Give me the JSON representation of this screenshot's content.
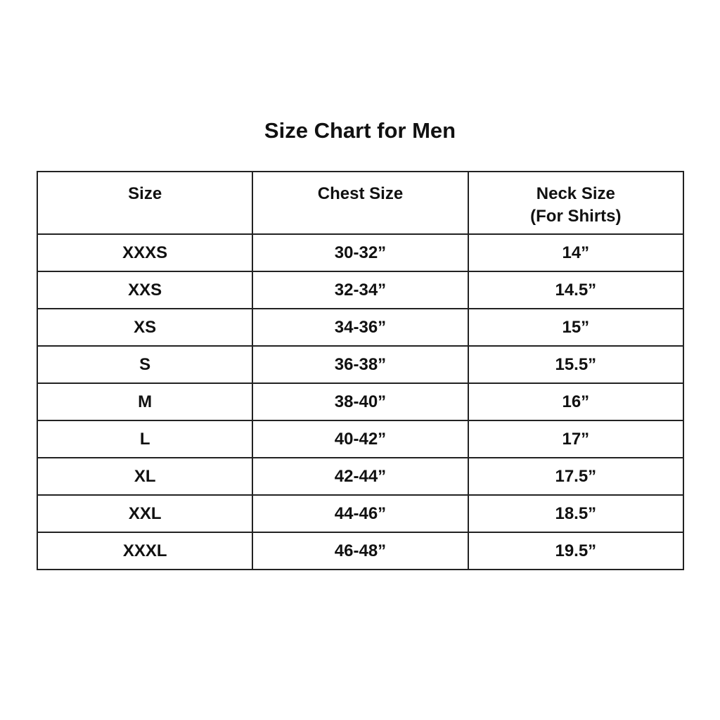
{
  "title": "Size Chart for Men",
  "headers": {
    "size": "Size",
    "chest": "Chest Size",
    "neck": "Neck Size",
    "neck_sub": "(For Shirts)"
  },
  "rows": [
    {
      "size": "XXXS",
      "chest": "30-32”",
      "neck": "14”"
    },
    {
      "size": "XXS",
      "chest": "32-34”",
      "neck": "14.5”"
    },
    {
      "size": "XS",
      "chest": "34-36”",
      "neck": "15”"
    },
    {
      "size": "S",
      "chest": "36-38”",
      "neck": "15.5”"
    },
    {
      "size": "M",
      "chest": "38-40”",
      "neck": "16”"
    },
    {
      "size": "L",
      "chest": "40-42”",
      "neck": "17”"
    },
    {
      "size": "XL",
      "chest": "42-44”",
      "neck": "17.5”"
    },
    {
      "size": "XXL",
      "chest": "44-46”",
      "neck": "18.5”"
    },
    {
      "size": "XXXL",
      "chest": "46-48”",
      "neck": "19.5”"
    }
  ]
}
